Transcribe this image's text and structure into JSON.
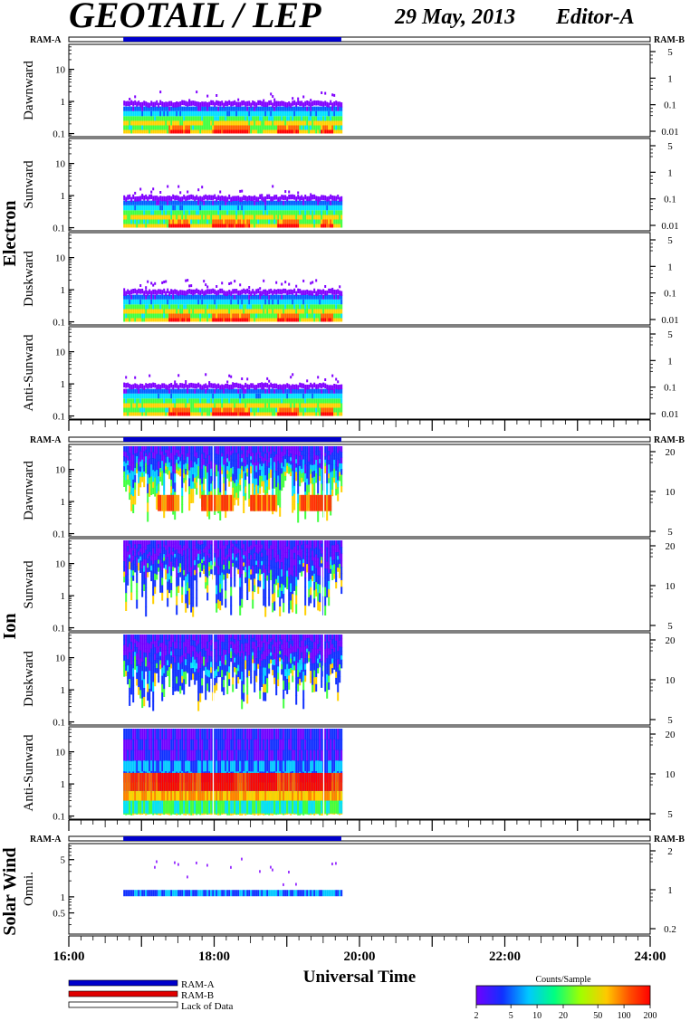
{
  "header": {
    "title": "GEOTAIL / LEP",
    "date": "29 May, 2013",
    "editor": "Editor-A"
  },
  "groups": [
    {
      "label": "Electron"
    },
    {
      "label": "Ion"
    },
    {
      "label": "Solar Wind"
    }
  ],
  "ram_labels": {
    "left": "RAM-A",
    "right": "RAM-B"
  },
  "x_axis": {
    "title": "Universal Time",
    "range_hours": [
      16,
      24
    ],
    "tick_labels": [
      "16:00",
      "18:00",
      "20:00",
      "22:00",
      "24:00"
    ]
  },
  "legend": {
    "items": [
      {
        "label": "RAM-A",
        "color": "#0000cc"
      },
      {
        "label": "RAM-B",
        "color": "#e00000"
      },
      {
        "label": "Lack of Data",
        "color": "#ffffff"
      }
    ]
  },
  "colorbar": {
    "title": "Counts/Sample",
    "scale": "log",
    "range": [
      2,
      200
    ],
    "tick_labels": [
      "2",
      "5",
      "10",
      "20",
      "50",
      "100",
      "200"
    ]
  },
  "chart_data": [
    {
      "type": "heatmap",
      "group": "Electron",
      "panel": "Dawnward",
      "ylabel": "Dawnward",
      "y_scale": "log",
      "ylim": [
        0.08,
        60
      ],
      "y_ticks": [
        "0.1",
        "1",
        "10"
      ],
      "right_ticks": [
        "5",
        "1",
        "0.1",
        "0.01"
      ],
      "data_coverage_hours": [
        16.75,
        19.75
      ],
      "ram_a_hours": [
        16.75,
        19.75
      ]
    },
    {
      "type": "heatmap",
      "group": "Electron",
      "panel": "Sunward",
      "ylabel": "Sunward",
      "y_scale": "log",
      "ylim": [
        0.08,
        60
      ],
      "y_ticks": [
        "0.1",
        "1",
        "10"
      ],
      "right_ticks": [
        "5",
        "1",
        "0.1",
        "0.01"
      ],
      "data_coverage_hours": [
        16.75,
        19.75
      ]
    },
    {
      "type": "heatmap",
      "group": "Electron",
      "panel": "Duskward",
      "ylabel": "Duskward",
      "y_scale": "log",
      "ylim": [
        0.08,
        60
      ],
      "y_ticks": [
        "0.1",
        "1",
        "10"
      ],
      "right_ticks": [
        "5",
        "1",
        "0.1",
        "0.01"
      ],
      "data_coverage_hours": [
        16.75,
        19.75
      ]
    },
    {
      "type": "heatmap",
      "group": "Electron",
      "panel": "Anti-Sunward",
      "ylabel": "Anti-Sunward",
      "y_scale": "log",
      "ylim": [
        0.08,
        60
      ],
      "y_ticks": [
        "0.1",
        "1",
        "10"
      ],
      "right_ticks": [
        "5",
        "1",
        "0.1",
        "0.01"
      ],
      "data_coverage_hours": [
        16.75,
        19.75
      ]
    },
    {
      "type": "heatmap",
      "group": "Ion",
      "panel": "Dawnward",
      "ylabel": "Dawnward",
      "y_scale": "log",
      "ylim": [
        0.08,
        60
      ],
      "y_ticks": [
        "0.1",
        "1",
        "10"
      ],
      "right_ticks": [
        "20",
        "10",
        "5"
      ],
      "data_coverage_hours": [
        16.75,
        19.75
      ],
      "ram_a_hours": [
        16.75,
        19.75
      ]
    },
    {
      "type": "heatmap",
      "group": "Ion",
      "panel": "Sunward",
      "ylabel": "Sunward",
      "y_scale": "log",
      "ylim": [
        0.08,
        60
      ],
      "y_ticks": [
        "0.1",
        "1",
        "10"
      ],
      "right_ticks": [
        "20",
        "10",
        "5"
      ],
      "data_coverage_hours": [
        16.75,
        19.75
      ]
    },
    {
      "type": "heatmap",
      "group": "Ion",
      "panel": "Duskward",
      "ylabel": "Duskward",
      "y_scale": "log",
      "ylim": [
        0.08,
        60
      ],
      "y_ticks": [
        "0.1",
        "1",
        "10"
      ],
      "right_ticks": [
        "20",
        "10",
        "5"
      ],
      "data_coverage_hours": [
        16.75,
        19.75
      ]
    },
    {
      "type": "heatmap",
      "group": "Ion",
      "panel": "Anti-Sunward",
      "ylabel": "Anti-Sunward",
      "y_scale": "log",
      "ylim": [
        0.08,
        60
      ],
      "y_ticks": [
        "0.1",
        "1",
        "10"
      ],
      "right_ticks": [
        "20",
        "10",
        "5"
      ],
      "data_coverage_hours": [
        16.75,
        19.75
      ]
    },
    {
      "type": "heatmap",
      "group": "Solar Wind",
      "panel": "Omni.",
      "ylabel": "Omni.",
      "y_scale": "log",
      "ylim": [
        0.2,
        10
      ],
      "y_ticks": [
        "0.5",
        "1",
        "5"
      ],
      "right_ticks": [
        "2",
        "1",
        "0.2"
      ],
      "data_coverage_hours": [
        16.75,
        19.75
      ],
      "ram_a_hours": [
        16.75,
        19.75
      ]
    }
  ]
}
